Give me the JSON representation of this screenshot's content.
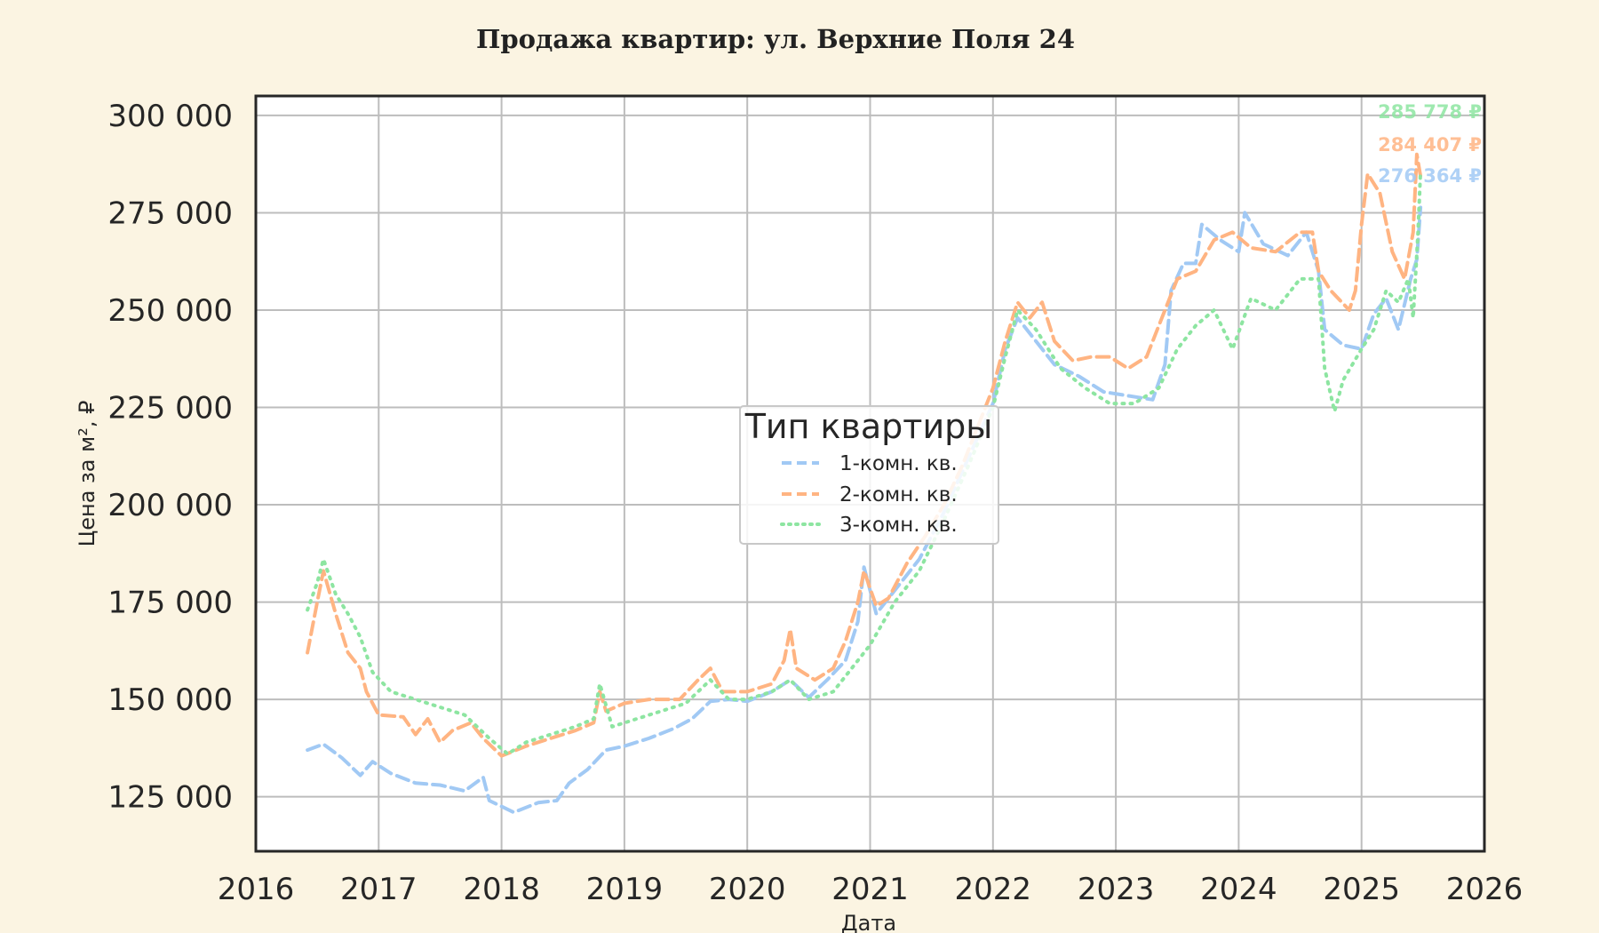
{
  "chart_data": {
    "type": "line",
    "title": "Продажа квартир: ул. Верхние Поля 24",
    "xlabel": "Дата",
    "ylabel": "Цена за м², ₽",
    "xlim": [
      2016,
      2026
    ],
    "ylim": [
      111000,
      305000
    ],
    "x_ticks": [
      {
        "value": 2016,
        "label": "2016"
      },
      {
        "value": 2017,
        "label": "2017"
      },
      {
        "value": 2018,
        "label": "2018"
      },
      {
        "value": 2019,
        "label": "2019"
      },
      {
        "value": 2020,
        "label": "2020"
      },
      {
        "value": 2021,
        "label": "2021"
      },
      {
        "value": 2022,
        "label": "2022"
      },
      {
        "value": 2023,
        "label": "2023"
      },
      {
        "value": 2024,
        "label": "2024"
      },
      {
        "value": 2025,
        "label": "2025"
      },
      {
        "value": 2026,
        "label": "2026"
      }
    ],
    "y_ticks": [
      {
        "value": 125000,
        "label": "125 000"
      },
      {
        "value": 150000,
        "label": "150 000"
      },
      {
        "value": 175000,
        "label": "175 000"
      },
      {
        "value": 200000,
        "label": "200 000"
      },
      {
        "value": 225000,
        "label": "225 000"
      },
      {
        "value": 250000,
        "label": "250 000"
      },
      {
        "value": 275000,
        "label": "275 000"
      },
      {
        "value": 300000,
        "label": "300 000"
      }
    ],
    "grid": true,
    "legend": {
      "title": "Тип квартиры",
      "placement": "center"
    },
    "series": [
      {
        "name": "1-комн. кв.",
        "color": "#a1c9f4",
        "style": "dashed",
        "end_label": "276 364 ₽",
        "points": [
          [
            2016.42,
            137000
          ],
          [
            2016.55,
            138500
          ],
          [
            2016.7,
            135000
          ],
          [
            2016.85,
            130500
          ],
          [
            2016.95,
            134000
          ],
          [
            2017.1,
            131000
          ],
          [
            2017.3,
            128500
          ],
          [
            2017.5,
            128000
          ],
          [
            2017.7,
            126500
          ],
          [
            2017.85,
            130000
          ],
          [
            2017.9,
            124000
          ],
          [
            2018.1,
            121000
          ],
          [
            2018.3,
            123500
          ],
          [
            2018.45,
            124000
          ],
          [
            2018.55,
            128500
          ],
          [
            2018.7,
            132000
          ],
          [
            2018.85,
            137000
          ],
          [
            2019.0,
            138000
          ],
          [
            2019.2,
            140000
          ],
          [
            2019.4,
            142500
          ],
          [
            2019.55,
            145000
          ],
          [
            2019.7,
            149500
          ],
          [
            2019.85,
            150000
          ],
          [
            2020.0,
            149500
          ],
          [
            2020.2,
            152000
          ],
          [
            2020.35,
            155000
          ],
          [
            2020.5,
            150500
          ],
          [
            2020.65,
            155000
          ],
          [
            2020.8,
            160000
          ],
          [
            2020.9,
            170000
          ],
          [
            2020.95,
            184000
          ],
          [
            2021.05,
            172000
          ],
          [
            2021.2,
            178000
          ],
          [
            2021.4,
            186000
          ],
          [
            2021.6,
            198000
          ],
          [
            2021.8,
            212000
          ],
          [
            2022.0,
            226000
          ],
          [
            2022.1,
            240000
          ],
          [
            2022.2,
            248000
          ],
          [
            2022.35,
            242000
          ],
          [
            2022.5,
            236000
          ],
          [
            2022.7,
            233000
          ],
          [
            2022.9,
            229000
          ],
          [
            2023.1,
            228000
          ],
          [
            2023.3,
            227000
          ],
          [
            2023.4,
            236000
          ],
          [
            2023.45,
            255000
          ],
          [
            2023.55,
            262000
          ],
          [
            2023.65,
            262000
          ],
          [
            2023.7,
            272000
          ],
          [
            2023.85,
            268000
          ],
          [
            2024.0,
            265000
          ],
          [
            2024.05,
            275000
          ],
          [
            2024.2,
            267000
          ],
          [
            2024.4,
            264000
          ],
          [
            2024.55,
            270000
          ],
          [
            2024.65,
            260000
          ],
          [
            2024.7,
            245000
          ],
          [
            2024.85,
            241000
          ],
          [
            2025.0,
            240000
          ],
          [
            2025.1,
            249000
          ],
          [
            2025.2,
            253000
          ],
          [
            2025.3,
            245000
          ],
          [
            2025.4,
            258000
          ],
          [
            2025.45,
            263000
          ],
          [
            2025.48,
            276364
          ]
        ]
      },
      {
        "name": "2-комн. кв.",
        "color": "#ffb482",
        "style": "dashed",
        "end_label": "284 407 ₽",
        "points": [
          [
            2016.42,
            162000
          ],
          [
            2016.5,
            175000
          ],
          [
            2016.55,
            183000
          ],
          [
            2016.65,
            172000
          ],
          [
            2016.75,
            162000
          ],
          [
            2016.85,
            158000
          ],
          [
            2016.9,
            152000
          ],
          [
            2017.0,
            146000
          ],
          [
            2017.2,
            145500
          ],
          [
            2017.3,
            141000
          ],
          [
            2017.4,
            145000
          ],
          [
            2017.5,
            139000
          ],
          [
            2017.6,
            142000
          ],
          [
            2017.75,
            144000
          ],
          [
            2017.85,
            140000
          ],
          [
            2018.0,
            135500
          ],
          [
            2018.2,
            138000
          ],
          [
            2018.4,
            140000
          ],
          [
            2018.6,
            142000
          ],
          [
            2018.75,
            144000
          ],
          [
            2018.8,
            152000
          ],
          [
            2018.85,
            147000
          ],
          [
            2019.0,
            149000
          ],
          [
            2019.2,
            150000
          ],
          [
            2019.45,
            150000
          ],
          [
            2019.6,
            155000
          ],
          [
            2019.7,
            158000
          ],
          [
            2019.8,
            152000
          ],
          [
            2020.0,
            152000
          ],
          [
            2020.2,
            154000
          ],
          [
            2020.3,
            160000
          ],
          [
            2020.35,
            168000
          ],
          [
            2020.4,
            158000
          ],
          [
            2020.55,
            155000
          ],
          [
            2020.7,
            158000
          ],
          [
            2020.8,
            165000
          ],
          [
            2020.9,
            175000
          ],
          [
            2020.95,
            183000
          ],
          [
            2021.05,
            174000
          ],
          [
            2021.15,
            176000
          ],
          [
            2021.3,
            185000
          ],
          [
            2021.45,
            192000
          ],
          [
            2021.6,
            200000
          ],
          [
            2021.75,
            210000
          ],
          [
            2021.9,
            222000
          ],
          [
            2022.0,
            230000
          ],
          [
            2022.1,
            242000
          ],
          [
            2022.2,
            252000
          ],
          [
            2022.3,
            248000
          ],
          [
            2022.4,
            252000
          ],
          [
            2022.5,
            242000
          ],
          [
            2022.65,
            237000
          ],
          [
            2022.8,
            238000
          ],
          [
            2022.95,
            238000
          ],
          [
            2023.1,
            235000
          ],
          [
            2023.25,
            238000
          ],
          [
            2023.35,
            246000
          ],
          [
            2023.5,
            258000
          ],
          [
            2023.65,
            260000
          ],
          [
            2023.8,
            268000
          ],
          [
            2023.95,
            270000
          ],
          [
            2024.1,
            266000
          ],
          [
            2024.3,
            265000
          ],
          [
            2024.5,
            270000
          ],
          [
            2024.6,
            270000
          ],
          [
            2024.65,
            260000
          ],
          [
            2024.75,
            255000
          ],
          [
            2024.9,
            250000
          ],
          [
            2024.95,
            255000
          ],
          [
            2025.0,
            272000
          ],
          [
            2025.05,
            285000
          ],
          [
            2025.15,
            280000
          ],
          [
            2025.25,
            265000
          ],
          [
            2025.35,
            258000
          ],
          [
            2025.42,
            270000
          ],
          [
            2025.45,
            290000
          ],
          [
            2025.48,
            284407
          ]
        ]
      },
      {
        "name": "3-комн. кв.",
        "color": "#8de5a1",
        "style": "dotted",
        "end_label": "285 778 ₽",
        "points": [
          [
            2016.42,
            173000
          ],
          [
            2016.5,
            180000
          ],
          [
            2016.55,
            186000
          ],
          [
            2016.65,
            177000
          ],
          [
            2016.75,
            172000
          ],
          [
            2016.85,
            166000
          ],
          [
            2016.95,
            157000
          ],
          [
            2017.1,
            152000
          ],
          [
            2017.3,
            150000
          ],
          [
            2017.5,
            148000
          ],
          [
            2017.7,
            146000
          ],
          [
            2017.9,
            140000
          ],
          [
            2018.05,
            136000
          ],
          [
            2018.2,
            139000
          ],
          [
            2018.4,
            141000
          ],
          [
            2018.6,
            143000
          ],
          [
            2018.75,
            145000
          ],
          [
            2018.8,
            154000
          ],
          [
            2018.9,
            143000
          ],
          [
            2019.1,
            145000
          ],
          [
            2019.3,
            147000
          ],
          [
            2019.5,
            149000
          ],
          [
            2019.7,
            155000
          ],
          [
            2019.85,
            150000
          ],
          [
            2020.0,
            150000
          ],
          [
            2020.2,
            152000
          ],
          [
            2020.35,
            155000
          ],
          [
            2020.5,
            150000
          ],
          [
            2020.7,
            152000
          ],
          [
            2020.85,
            158000
          ],
          [
            2021.0,
            164000
          ],
          [
            2021.2,
            175000
          ],
          [
            2021.4,
            183000
          ],
          [
            2021.6,
            196000
          ],
          [
            2021.8,
            210000
          ],
          [
            2022.0,
            225000
          ],
          [
            2022.1,
            238000
          ],
          [
            2022.2,
            250000
          ],
          [
            2022.35,
            245000
          ],
          [
            2022.55,
            235000
          ],
          [
            2022.75,
            230000
          ],
          [
            2022.95,
            226000
          ],
          [
            2023.15,
            226000
          ],
          [
            2023.35,
            230000
          ],
          [
            2023.5,
            240000
          ],
          [
            2023.65,
            246000
          ],
          [
            2023.8,
            250000
          ],
          [
            2023.95,
            240000
          ],
          [
            2024.1,
            253000
          ],
          [
            2024.3,
            250000
          ],
          [
            2024.5,
            258000
          ],
          [
            2024.65,
            258000
          ],
          [
            2024.7,
            235000
          ],
          [
            2024.78,
            224000
          ],
          [
            2024.85,
            232000
          ],
          [
            2025.0,
            240000
          ],
          [
            2025.1,
            245000
          ],
          [
            2025.2,
            255000
          ],
          [
            2025.3,
            252000
          ],
          [
            2025.38,
            258000
          ],
          [
            2025.42,
            248000
          ],
          [
            2025.46,
            270000
          ],
          [
            2025.48,
            285778
          ]
        ]
      }
    ]
  }
}
